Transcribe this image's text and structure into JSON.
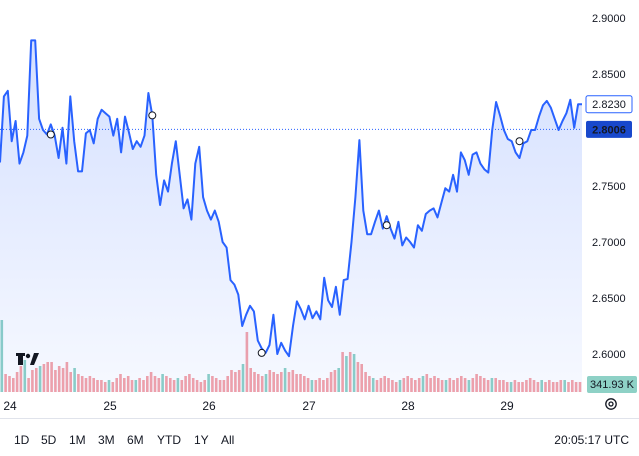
{
  "chart_data": {
    "type": "area",
    "title": "",
    "x_tick_labels": [
      "24",
      "25",
      "26",
      "27",
      "28",
      "29"
    ],
    "y_ticks": [
      "2.9000",
      "2.8500",
      "2.8000",
      "2.7500",
      "2.7000",
      "2.6500",
      "2.6000"
    ],
    "ylim": [
      2.579,
      2.912
    ],
    "series": [
      {
        "values": [
          2.771,
          2.83,
          2.835,
          2.79,
          2.808,
          2.77,
          2.78,
          2.795,
          2.88,
          2.88,
          2.81,
          2.8,
          2.796,
          2.805,
          2.795,
          2.775,
          2.802,
          2.77,
          2.83,
          2.79,
          2.763,
          2.763,
          2.797,
          2.8,
          2.788,
          2.81,
          2.818,
          2.815,
          2.812,
          2.795,
          2.81,
          2.78,
          2.812,
          2.798,
          2.783,
          2.79,
          2.785,
          2.795,
          2.833,
          2.813,
          2.76,
          2.733,
          2.755,
          2.745,
          2.77,
          2.79,
          2.76,
          2.73,
          2.738,
          2.72,
          2.77,
          2.785,
          2.74,
          2.728,
          2.72,
          2.728,
          2.718,
          2.7,
          2.695,
          2.666,
          2.662,
          2.653,
          2.625,
          2.635,
          2.643,
          2.638,
          2.612,
          2.605,
          2.601,
          2.608,
          2.635,
          2.6,
          2.61,
          2.603,
          2.598,
          2.625,
          2.647,
          2.64,
          2.631,
          2.643,
          2.632,
          2.638,
          2.631,
          2.668,
          2.648,
          2.642,
          2.66,
          2.635,
          2.666,
          2.667,
          2.7,
          2.74,
          2.791,
          2.728,
          2.707,
          2.707,
          2.718,
          2.728,
          2.712,
          2.723,
          2.712,
          2.703,
          2.718,
          2.697,
          2.704,
          2.7,
          2.695,
          2.715,
          2.71,
          2.725,
          2.728,
          2.73,
          2.722,
          2.735,
          2.748,
          2.745,
          2.76,
          2.745,
          2.78,
          2.773,
          2.76,
          2.778,
          2.78,
          2.77,
          2.765,
          2.762,
          2.8,
          2.825,
          2.813,
          2.8,
          2.792,
          2.79,
          2.78,
          2.775,
          2.788,
          2.79,
          2.8,
          2.8,
          2.812,
          2.822,
          2.826,
          2.82,
          2.81,
          2.8,
          2.808,
          2.815,
          2.827,
          2.802,
          2.823,
          2.823
        ]
      }
    ],
    "markers": [
      2.796,
      2.813,
      2.601,
      2.715,
      2.79
    ],
    "current_price": "2.8230",
    "reference_price": "2.8006",
    "volume_label": "341.93 K",
    "colors": {
      "line": "#2962ff",
      "current_badge": "#2962ff",
      "reference_badge": "#1848cc",
      "volume_up": "#8ed1c6",
      "volume_down": "#f5a3a8"
    },
    "volume": {
      "values": [
        72,
        18,
        16,
        14,
        20,
        26,
        32,
        14,
        22,
        24,
        26,
        28,
        30,
        30,
        22,
        26,
        24,
        30,
        20,
        24,
        18,
        16,
        14,
        16,
        14,
        12,
        12,
        10,
        12,
        10,
        14,
        18,
        14,
        16,
        12,
        12,
        14,
        12,
        16,
        20,
        16,
        14,
        18,
        16,
        14,
        12,
        14,
        12,
        16,
        18,
        14,
        12,
        10,
        12,
        18,
        16,
        14,
        12,
        12,
        16,
        22,
        20,
        22,
        28,
        60,
        24,
        20,
        18,
        16,
        18,
        22,
        20,
        18,
        20,
        24,
        20,
        22,
        18,
        18,
        16,
        14,
        12,
        12,
        14,
        12,
        14,
        20,
        22,
        24,
        40,
        36,
        40,
        38,
        30,
        28,
        20,
        16,
        14,
        12,
        14,
        16,
        14,
        12,
        10,
        12,
        14,
        16,
        14,
        12,
        14,
        16,
        18,
        14,
        16,
        14,
        12,
        12,
        14,
        12,
        14,
        16,
        14,
        12,
        14,
        18,
        16,
        14,
        12,
        14,
        14,
        12,
        12,
        10,
        10,
        12,
        10,
        10,
        12,
        14,
        12,
        10,
        12,
        10,
        12,
        10,
        10,
        12,
        12,
        10,
        12,
        10,
        10
      ],
      "up_indices": [
        0,
        6,
        10,
        19,
        28,
        35,
        42,
        46,
        54,
        63,
        69,
        74,
        81,
        88,
        90,
        92,
        97,
        104,
        110,
        116,
        122,
        128,
        133,
        141,
        147
      ]
    }
  },
  "range_buttons": [
    "1D",
    "5D",
    "1M",
    "3M",
    "6M",
    "YTD",
    "1Y",
    "All"
  ],
  "clock": "20:05:17 UTC",
  "icons": {
    "logo": "tradingview-logo",
    "settings": "gear-icon"
  }
}
